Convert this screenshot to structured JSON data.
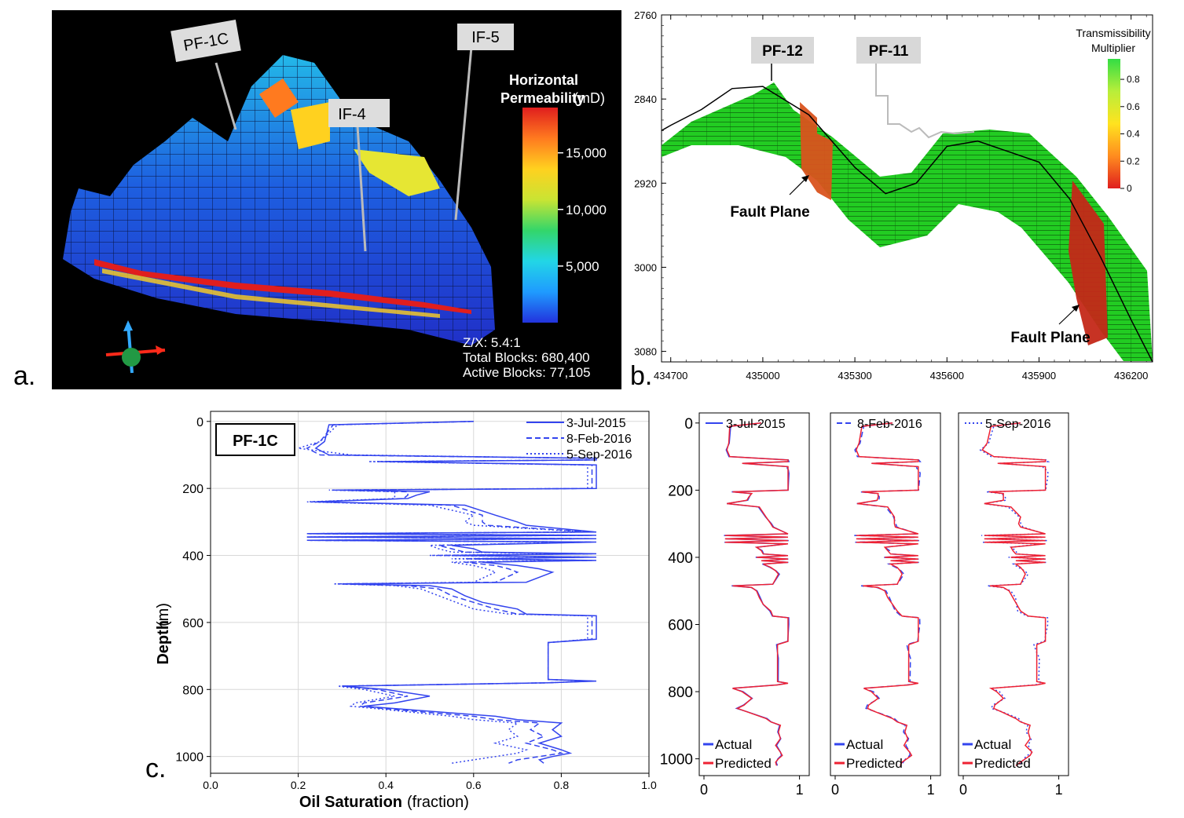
{
  "panels": {
    "a": {
      "letter": "a.",
      "well_labels": [
        "PF-1C",
        "IF-4",
        "IF-5"
      ],
      "colorbar": {
        "title_line1": "Horizontal",
        "title_line2_bold": "Permeability",
        "title_line2_unit": "(mD)",
        "ticks": [
          "15,000",
          "10,000",
          "5,000"
        ],
        "tick_values": [
          15000,
          10000,
          5000
        ],
        "max": 19000,
        "colors": [
          "#2233dd",
          "#1f9bff",
          "#22d6e6",
          "#33d66a",
          "#c9e433",
          "#ffd11f",
          "#ff7a1f",
          "#e01e1e"
        ]
      },
      "info_lines": [
        "Z/X: 5.4:1",
        "Total Blocks: 680,400",
        "Active Blocks: 77,105"
      ]
    },
    "b": {
      "letter": "b.",
      "well_labels": [
        "PF-12",
        "PF-11"
      ],
      "annotations": [
        "Fault Plane",
        "Fault Plane"
      ],
      "colorbar": {
        "title_line1": "Transmissibility",
        "title_line2": "Multiplier",
        "ticks": [
          "0.8",
          "0.6",
          "0.4",
          "0.2",
          "0"
        ],
        "tick_values": [
          0.8,
          0.6,
          0.4,
          0.2,
          0
        ],
        "max": 0.95,
        "colors": [
          "#e01e1e",
          "#ff8c1f",
          "#ffe31f",
          "#b8ee3a",
          "#33dd44"
        ]
      },
      "chart_data": {
        "type": "line",
        "x_ticks": [
          434700,
          435000,
          435300,
          435600,
          435900,
          436200
        ],
        "y_ticks": [
          2760,
          2840,
          2920,
          3000,
          3080
        ],
        "xlim": [
          434670,
          436270
        ],
        "ylim": [
          2760,
          3090
        ],
        "series": [
          {
            "x": [
              434670,
              434700,
              434800,
              434900,
              435000,
              435150,
              435300,
              435400,
              435500,
              435600,
              435700,
              435800,
              435900,
              436000,
              436100,
              436200,
              436270
            ],
            "y": [
              2870,
              2865,
              2850,
              2830,
              2828,
              2855,
              2905,
              2930,
              2920,
              2885,
              2880,
              2890,
              2900,
              2935,
              2990,
              3050,
              3090
            ]
          }
        ]
      }
    },
    "c": {
      "letter": "c.",
      "well_label": "PF-1C",
      "legend": [
        "3-Jul-2015",
        "8-Feb-2016",
        "5-Sep-2016"
      ],
      "small_legend": [
        "Actual",
        "Predicted"
      ],
      "colors": {
        "blue": "#3344ee",
        "red": "#ee2233"
      },
      "xlabel_bold": "Oil Saturation",
      "xlabel_unit": "(fraction)",
      "ylabel_bold": "Depth",
      "ylabel_unit": "(m)",
      "chart_data": {
        "type": "line",
        "xlim": [
          0,
          1
        ],
        "ylim": [
          1050,
          -30
        ],
        "x_ticks": [
          0.0,
          0.2,
          0.4,
          0.6,
          0.8,
          1.0
        ],
        "y_ticks": [
          0,
          200,
          400,
          600,
          800,
          1000
        ],
        "small_x_ticks": [
          0,
          1
        ],
        "depth": [
          0,
          10,
          60,
          80,
          100,
          110,
          115,
          120,
          130,
          135,
          140,
          150,
          200,
          205,
          210,
          220,
          230,
          240,
          250,
          280,
          300,
          310,
          330,
          335,
          340,
          345,
          350,
          355,
          360,
          370,
          380,
          390,
          395,
          400,
          405,
          410,
          415,
          420,
          430,
          440,
          450,
          480,
          485,
          490,
          500,
          520,
          540,
          560,
          575,
          580,
          600,
          650,
          660,
          680,
          700,
          770,
          775,
          780,
          790,
          800,
          820,
          840,
          850,
          860,
          880,
          890,
          900,
          920,
          940,
          960,
          980,
          990,
          1000,
          1010,
          1020
        ],
        "series": [
          {
            "name": "3-Jul-2015",
            "values": [
              0.6,
              0.27,
              0.26,
              0.24,
              0.27,
              0.88,
              0.88,
              0.4,
              0.88,
              0.88,
              0.88,
              0.88,
              0.88,
              0.3,
              0.5,
              0.47,
              0.45,
              0.24,
              0.58,
              0.65,
              0.7,
              0.72,
              0.88,
              0.22,
              0.88,
              0.22,
              0.88,
              0.22,
              0.88,
              0.55,
              0.6,
              0.62,
              0.88,
              0.55,
              0.88,
              0.6,
              0.88,
              0.62,
              0.7,
              0.75,
              0.78,
              0.72,
              0.3,
              0.5,
              0.55,
              0.58,
              0.62,
              0.7,
              0.72,
              0.88,
              0.88,
              0.88,
              0.77,
              0.77,
              0.77,
              0.77,
              0.88,
              0.77,
              0.3,
              0.4,
              0.5,
              0.42,
              0.35,
              0.45,
              0.65,
              0.7,
              0.8,
              0.78,
              0.8,
              0.75,
              0.8,
              0.82,
              0.78,
              0.75,
              0.76
            ]
          },
          {
            "name": "8-Feb-2016",
            "values": [
              0.6,
              0.28,
              0.25,
              0.22,
              0.25,
              0.87,
              0.87,
              0.38,
              0.87,
              0.87,
              0.87,
              0.87,
              0.87,
              0.28,
              0.45,
              0.45,
              0.44,
              0.23,
              0.55,
              0.62,
              0.62,
              0.63,
              0.87,
              0.22,
              0.87,
              0.22,
              0.87,
              0.22,
              0.87,
              0.52,
              0.55,
              0.58,
              0.87,
              0.52,
              0.87,
              0.58,
              0.87,
              0.58,
              0.65,
              0.68,
              0.7,
              0.65,
              0.29,
              0.45,
              0.52,
              0.55,
              0.6,
              0.65,
              0.7,
              0.87,
              0.87,
              0.87,
              0.77,
              0.77,
              0.77,
              0.77,
              0.87,
              0.77,
              0.3,
              0.38,
              0.45,
              0.35,
              0.34,
              0.42,
              0.6,
              0.65,
              0.75,
              0.73,
              0.76,
              0.72,
              0.78,
              0.8,
              0.75,
              0.7,
              0.68
            ]
          },
          {
            "name": "5-Sep-2016",
            "values": [
              0.6,
              0.29,
              0.25,
              0.2,
              0.32,
              0.86,
              0.86,
              0.36,
              0.86,
              0.86,
              0.86,
              0.86,
              0.86,
              0.27,
              0.42,
              0.42,
              0.42,
              0.22,
              0.5,
              0.6,
              0.58,
              0.6,
              0.86,
              0.22,
              0.86,
              0.22,
              0.86,
              0.22,
              0.86,
              0.5,
              0.52,
              0.55,
              0.86,
              0.5,
              0.86,
              0.55,
              0.86,
              0.55,
              0.6,
              0.63,
              0.65,
              0.6,
              0.28,
              0.42,
              0.48,
              0.52,
              0.56,
              0.6,
              0.68,
              0.86,
              0.86,
              0.86,
              0.77,
              0.77,
              0.77,
              0.77,
              0.86,
              0.77,
              0.29,
              0.35,
              0.42,
              0.33,
              0.32,
              0.4,
              0.55,
              0.6,
              0.7,
              0.68,
              0.7,
              0.65,
              0.72,
              0.7,
              0.65,
              0.6,
              0.55
            ]
          }
        ]
      }
    }
  }
}
